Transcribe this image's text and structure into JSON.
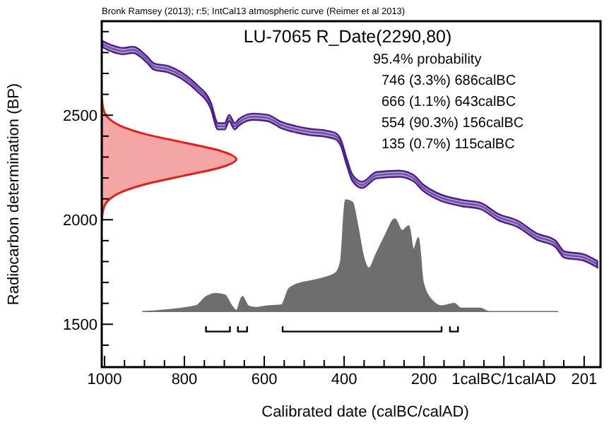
{
  "chart_data": {
    "type": "line",
    "title": "LU-7065 R_Date(2290,80)",
    "xlabel": "Calibrated date (calBC/calAD)",
    "ylabel": "Radiocarbon determination (BP)",
    "annotations": [
      "Bronk Ramsey (2013); r:5; IntCal13 atmospheric curve (Reimer et al 2013)",
      "95.4% probability",
      "746 (3.3%) 686calBC",
      "666 (1.1%) 643calBC",
      "554 (90.3%) 156calBC",
      "135 (0.7%) 115calBC"
    ],
    "xlim": [
      -1007,
      242
    ],
    "ylim": [
      1295,
      2950
    ],
    "xticks": [
      {
        "value": -1000,
        "label": "1000"
      },
      {
        "value": -950,
        "label": null
      },
      {
        "value": -900,
        "label": null
      },
      {
        "value": -850,
        "label": null
      },
      {
        "value": -800,
        "label": "800"
      },
      {
        "value": -750,
        "label": null
      },
      {
        "value": -700,
        "label": null
      },
      {
        "value": -650,
        "label": null
      },
      {
        "value": -600,
        "label": "600"
      },
      {
        "value": -550,
        "label": null
      },
      {
        "value": -500,
        "label": null
      },
      {
        "value": -450,
        "label": null
      },
      {
        "value": -400,
        "label": "400"
      },
      {
        "value": -350,
        "label": null
      },
      {
        "value": -300,
        "label": null
      },
      {
        "value": -250,
        "label": null
      },
      {
        "value": -200,
        "label": "200"
      },
      {
        "value": -150,
        "label": null
      },
      {
        "value": -100,
        "label": null
      },
      {
        "value": -50,
        "label": null
      },
      {
        "value": 0,
        "label": "1calBC/1calAD"
      },
      {
        "value": 50,
        "label": null
      },
      {
        "value": 100,
        "label": null
      },
      {
        "value": 150,
        "label": null
      },
      {
        "value": 201,
        "label": "201"
      }
    ],
    "yticks": [
      {
        "value": 1400,
        "label": null
      },
      1500,
      {
        "value": 1600,
        "label": null
      },
      {
        "value": 1700,
        "label": null
      },
      {
        "value": 1800,
        "label": null
      },
      {
        "value": 1900,
        "label": null
      },
      2000,
      {
        "value": 2100,
        "label": null
      },
      {
        "value": 2200,
        "label": null
      },
      {
        "value": 2300,
        "label": null
      },
      {
        "value": 2400,
        "label": null
      },
      2500,
      {
        "value": 2600,
        "label": null
      },
      {
        "value": 2700,
        "label": null
      },
      {
        "value": 2800,
        "label": null
      },
      {
        "value": 2900,
        "label": null
      }
    ],
    "grid": false,
    "series": [
      {
        "type": "line",
        "color": "#000000",
        "x": [
          -746,
          -746,
          -686,
          -686
        ],
        "values": [
          1490,
          1465,
          1465,
          1490
        ]
      },
      {
        "type": "line",
        "color": "#000000",
        "x": [
          -666,
          -666,
          -643,
          -643
        ],
        "values": [
          1490,
          1465,
          1465,
          1490
        ]
      },
      {
        "type": "line",
        "color": "#000000",
        "x": [
          -554,
          -554,
          -156,
          -156
        ],
        "values": [
          1490,
          1465,
          1465,
          1490
        ]
      },
      {
        "type": "line",
        "color": "#000000",
        "x": [
          -135,
          -135,
          -115,
          -115
        ],
        "values": [
          1490,
          1465,
          1465,
          1490
        ]
      },
      {
        "type": "area",
        "color": "#e0201b",
        "x": [
          -1007,
          -1003,
          -992,
          -961,
          -898,
          -803,
          -710,
          -670,
          -710,
          -803,
          -898,
          -961,
          -992,
          -1003,
          -1007
        ],
        "values": [
          1990,
          2050,
          2090,
          2130,
          2170,
          2210,
          2250,
          2290,
          2330,
          2370,
          2410,
          2450,
          2490,
          2530,
          2590
        ]
      },
      {
        "type": "area",
        "color": "#6e6e6e",
        "x": [
          -905,
          -772,
          -745,
          -722,
          -699,
          -681,
          -670,
          -655,
          -640,
          -622,
          -592,
          -557,
          -539,
          -521,
          -486,
          -450,
          -421,
          -409,
          -397,
          -379,
          -368,
          -350,
          -338,
          -320,
          -297,
          -273,
          -255,
          -238,
          -226,
          -214,
          -202,
          -178,
          -155,
          -125,
          -107,
          -60,
          -37,
          135
        ],
        "values": [
          1561,
          1588,
          1633,
          1647,
          1640,
          1588,
          1566,
          1633,
          1588,
          1580,
          1588,
          1592,
          1669,
          1690,
          1707,
          1723,
          1746,
          1800,
          2095,
          2084,
          1993,
          1813,
          1768,
          1836,
          1926,
          2004,
          1948,
          1971,
          1858,
          1915,
          1700,
          1611,
          1588,
          1600,
          1577,
          1577,
          1561,
          1561
        ]
      },
      {
        "color": "#4b1d8c",
        "x": [
          -1005,
          -982,
          -954,
          -929,
          -894,
          -876,
          -840,
          -805,
          -770,
          -734,
          -716,
          -699,
          -688,
          -674,
          -663,
          -628,
          -592,
          -557,
          -521,
          -486,
          -450,
          -422,
          -408,
          -394,
          -379,
          -355,
          -319,
          -262,
          -227,
          -202,
          -167,
          -106,
          -60,
          -14,
          35,
          82,
          128,
          152,
          199,
          234
        ],
        "values": [
          2840,
          2820,
          2807,
          2813,
          2767,
          2733,
          2720,
          2687,
          2633,
          2547,
          2447,
          2447,
          2487,
          2447,
          2467,
          2493,
          2487,
          2453,
          2433,
          2420,
          2413,
          2400,
          2367,
          2280,
          2200,
          2167,
          2213,
          2220,
          2200,
          2153,
          2113,
          2080,
          2067,
          2013,
          1980,
          1920,
          1887,
          1833,
          1820,
          1787
        ],
        "lower": [
          2825,
          2805,
          2792,
          2798,
          2752,
          2718,
          2705,
          2672,
          2618,
          2532,
          2432,
          2432,
          2472,
          2432,
          2452,
          2478,
          2472,
          2438,
          2418,
          2405,
          2398,
          2385,
          2352,
          2265,
          2185,
          2152,
          2198,
          2205,
          2185,
          2138,
          2098,
          2065,
          2052,
          1998,
          1965,
          1905,
          1872,
          1818,
          1805,
          1772
        ],
        "upper": [
          2855,
          2835,
          2822,
          2828,
          2782,
          2748,
          2735,
          2702,
          2648,
          2562,
          2462,
          2462,
          2502,
          2462,
          2482,
          2508,
          2502,
          2468,
          2448,
          2435,
          2428,
          2415,
          2382,
          2295,
          2215,
          2182,
          2228,
          2235,
          2215,
          2168,
          2128,
          2095,
          2082,
          2028,
          1995,
          1935,
          1902,
          1848,
          1835,
          1802
        ]
      }
    ]
  }
}
